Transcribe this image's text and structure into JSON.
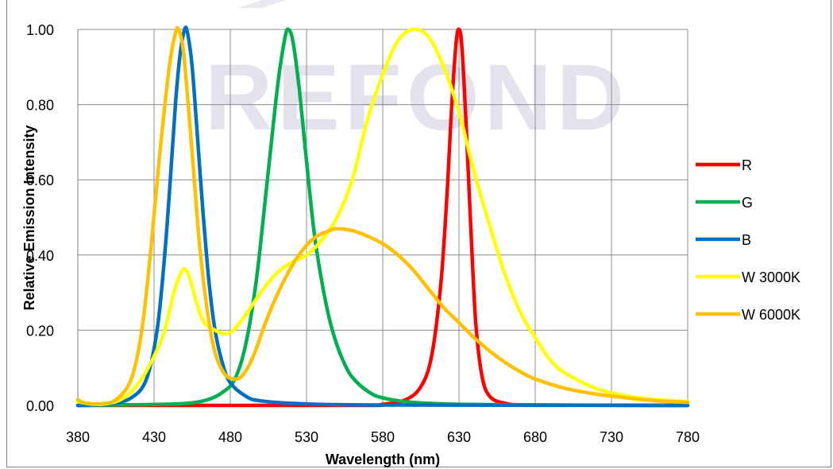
{
  "chart_data": {
    "type": "line",
    "title": "",
    "xlabel": "Wavelength (nm)",
    "ylabel": "Relative Emission Intensity",
    "xlim": [
      380,
      780
    ],
    "ylim": [
      0,
      1
    ],
    "x_ticks": [
      "380",
      "430",
      "480",
      "530",
      "580",
      "630",
      "680",
      "730",
      "780"
    ],
    "y_ticks": [
      "0.00",
      "0.20",
      "0.40",
      "0.60",
      "0.80",
      "1.00"
    ],
    "grid": true,
    "legend_position": "right",
    "watermark": "REFOND",
    "series": [
      {
        "name": "R",
        "color": "#ff0000",
        "points": [
          [
            380,
            0
          ],
          [
            560,
            0
          ],
          [
            580,
            0.003
          ],
          [
            595,
            0.015
          ],
          [
            605,
            0.05
          ],
          [
            612,
            0.13
          ],
          [
            618,
            0.32
          ],
          [
            622,
            0.55
          ],
          [
            625,
            0.78
          ],
          [
            628,
            0.96
          ],
          [
            630,
            1.0
          ],
          [
            632,
            0.95
          ],
          [
            635,
            0.72
          ],
          [
            638,
            0.45
          ],
          [
            641,
            0.22
          ],
          [
            645,
            0.08
          ],
          [
            650,
            0.025
          ],
          [
            660,
            0.006
          ],
          [
            680,
            0.001
          ],
          [
            780,
            0
          ]
        ]
      },
      {
        "name": "G",
        "color": "#00b050",
        "points": [
          [
            380,
            0
          ],
          [
            420,
            0.002
          ],
          [
            450,
            0.005
          ],
          [
            465,
            0.015
          ],
          [
            475,
            0.035
          ],
          [
            483,
            0.07
          ],
          [
            490,
            0.16
          ],
          [
            497,
            0.33
          ],
          [
            503,
            0.55
          ],
          [
            508,
            0.74
          ],
          [
            512,
            0.88
          ],
          [
            516,
            0.98
          ],
          [
            518,
            1.0
          ],
          [
            521,
            0.97
          ],
          [
            525,
            0.85
          ],
          [
            530,
            0.65
          ],
          [
            535,
            0.46
          ],
          [
            540,
            0.33
          ],
          [
            545,
            0.23
          ],
          [
            550,
            0.16
          ],
          [
            555,
            0.11
          ],
          [
            560,
            0.075
          ],
          [
            570,
            0.038
          ],
          [
            580,
            0.02
          ],
          [
            600,
            0.008
          ],
          [
            630,
            0.003
          ],
          [
            680,
            0.001
          ],
          [
            780,
            0
          ]
        ]
      },
      {
        "name": "B",
        "color": "#0070c0",
        "points": [
          [
            380,
            0
          ],
          [
            400,
            0.003
          ],
          [
            415,
            0.02
          ],
          [
            425,
            0.07
          ],
          [
            432,
            0.2
          ],
          [
            437,
            0.4
          ],
          [
            441,
            0.62
          ],
          [
            444,
            0.8
          ],
          [
            447,
            0.93
          ],
          [
            450,
            1.0
          ],
          [
            452,
            0.99
          ],
          [
            455,
            0.9
          ],
          [
            458,
            0.74
          ],
          [
            462,
            0.52
          ],
          [
            466,
            0.33
          ],
          [
            470,
            0.2
          ],
          [
            475,
            0.11
          ],
          [
            480,
            0.06
          ],
          [
            490,
            0.025
          ],
          [
            500,
            0.012
          ],
          [
            530,
            0.004
          ],
          [
            580,
            0.001
          ],
          [
            780,
            0
          ]
        ]
      },
      {
        "name": "W 3000K",
        "color": "#ffff00",
        "points": [
          [
            380,
            0.01
          ],
          [
            390,
            0.003
          ],
          [
            400,
            0.005
          ],
          [
            410,
            0.02
          ],
          [
            420,
            0.06
          ],
          [
            430,
            0.13
          ],
          [
            437,
            0.2
          ],
          [
            443,
            0.3
          ],
          [
            448,
            0.355
          ],
          [
            451,
            0.36
          ],
          [
            454,
            0.33
          ],
          [
            458,
            0.27
          ],
          [
            463,
            0.22
          ],
          [
            470,
            0.2
          ],
          [
            476,
            0.19
          ],
          [
            482,
            0.2
          ],
          [
            490,
            0.24
          ],
          [
            500,
            0.3
          ],
          [
            510,
            0.35
          ],
          [
            520,
            0.38
          ],
          [
            530,
            0.4
          ],
          [
            540,
            0.44
          ],
          [
            550,
            0.5
          ],
          [
            560,
            0.6
          ],
          [
            570,
            0.76
          ],
          [
            580,
            0.88
          ],
          [
            590,
            0.97
          ],
          [
            600,
            1.0
          ],
          [
            610,
            0.98
          ],
          [
            620,
            0.9
          ],
          [
            630,
            0.78
          ],
          [
            640,
            0.62
          ],
          [
            650,
            0.48
          ],
          [
            660,
            0.35
          ],
          [
            670,
            0.25
          ],
          [
            680,
            0.18
          ],
          [
            690,
            0.12
          ],
          [
            700,
            0.085
          ],
          [
            720,
            0.045
          ],
          [
            740,
            0.025
          ],
          [
            760,
            0.015
          ],
          [
            780,
            0.01
          ]
        ]
      },
      {
        "name": "W 6000K",
        "color": "#ffc000",
        "points": [
          [
            380,
            0.015
          ],
          [
            385,
            0.006
          ],
          [
            395,
            0.004
          ],
          [
            405,
            0.015
          ],
          [
            415,
            0.07
          ],
          [
            422,
            0.2
          ],
          [
            428,
            0.42
          ],
          [
            434,
            0.68
          ],
          [
            440,
            0.9
          ],
          [
            444,
            0.99
          ],
          [
            446,
            1.0
          ],
          [
            449,
            0.95
          ],
          [
            452,
            0.82
          ],
          [
            456,
            0.62
          ],
          [
            460,
            0.42
          ],
          [
            465,
            0.25
          ],
          [
            470,
            0.14
          ],
          [
            476,
            0.085
          ],
          [
            482,
            0.07
          ],
          [
            488,
            0.08
          ],
          [
            495,
            0.13
          ],
          [
            505,
            0.24
          ],
          [
            515,
            0.33
          ],
          [
            525,
            0.4
          ],
          [
            535,
            0.445
          ],
          [
            545,
            0.465
          ],
          [
            550,
            0.47
          ],
          [
            560,
            0.465
          ],
          [
            570,
            0.45
          ],
          [
            580,
            0.43
          ],
          [
            590,
            0.4
          ],
          [
            600,
            0.36
          ],
          [
            610,
            0.31
          ],
          [
            620,
            0.26
          ],
          [
            630,
            0.22
          ],
          [
            640,
            0.18
          ],
          [
            650,
            0.145
          ],
          [
            660,
            0.115
          ],
          [
            670,
            0.09
          ],
          [
            680,
            0.07
          ],
          [
            700,
            0.045
          ],
          [
            720,
            0.03
          ],
          [
            740,
            0.02
          ],
          [
            760,
            0.012
          ],
          [
            780,
            0.008
          ]
        ]
      }
    ]
  }
}
